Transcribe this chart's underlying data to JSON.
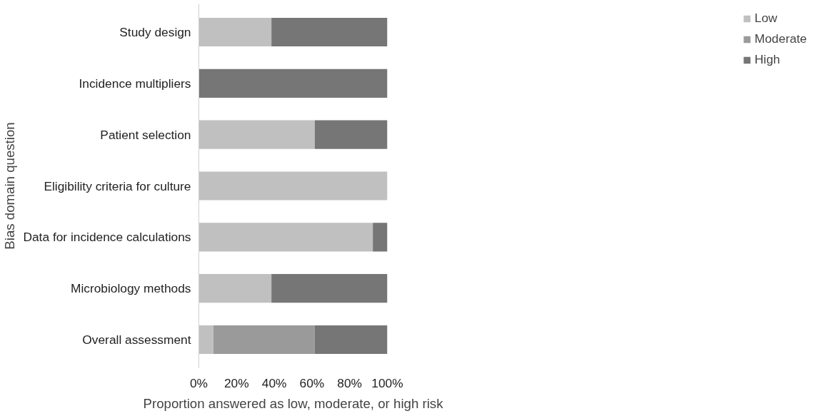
{
  "chart_data": {
    "type": "bar",
    "orientation": "horizontal",
    "stacked": true,
    "xlabel": "Proportion answered as low, moderate, or high risk",
    "ylabel": "Bias domain question",
    "categories": [
      "Study design",
      "Incidence multipliers",
      "Patient selection",
      "Eligibility criteria for culture",
      "Data for incidence calculations",
      "Microbiology methods",
      "Overall assessment"
    ],
    "series": [
      {
        "name": "Low",
        "color": "#c0c0c0",
        "values": [
          38.5,
          0,
          61.5,
          100,
          92.3,
          38.5,
          7.7
        ]
      },
      {
        "name": "Moderate",
        "color": "#9a9a9a",
        "values": [
          0,
          0,
          0,
          0,
          0,
          0,
          53.8
        ]
      },
      {
        "name": "High",
        "color": "#767676",
        "values": [
          61.5,
          100,
          38.5,
          0,
          7.7,
          61.5,
          38.5
        ]
      }
    ],
    "xlim": [
      0,
      100
    ],
    "xticks": [
      {
        "value": 0,
        "label": "0%"
      },
      {
        "value": 20,
        "label": "20%"
      },
      {
        "value": 40,
        "label": "40%"
      },
      {
        "value": 60,
        "label": "60%"
      },
      {
        "value": 80,
        "label": "80%"
      },
      {
        "value": 100,
        "label": "100%"
      }
    ],
    "grid": false,
    "legend": "right"
  }
}
